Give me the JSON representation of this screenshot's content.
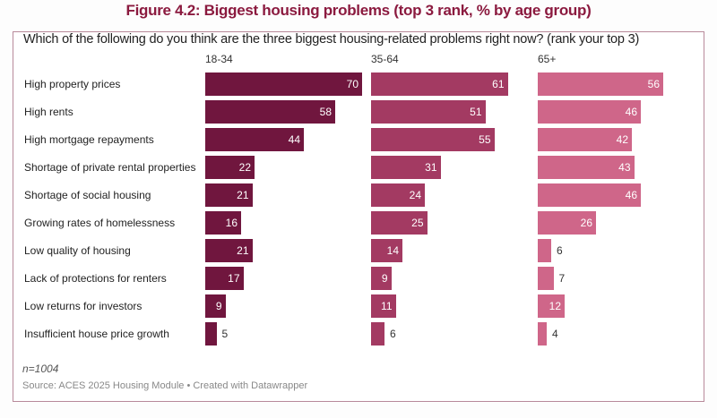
{
  "title": "Figure 4.2: Biggest housing problems (top 3 rank, % by age group)",
  "chart_data": {
    "type": "bar",
    "orientation": "horizontal",
    "question": "Which of the following do you think are the three biggest housing-related problems right now? (rank your top 3)",
    "categories": [
      "High property prices",
      "High rents",
      "High mortgage repayments",
      "Shortage of private rental properties",
      "Shortage of social housing",
      "Growing rates of homelessness",
      "Low quality of housing",
      "Lack of protections for renters",
      "Low returns for investors",
      "Insufficient house price growth"
    ],
    "series": [
      {
        "name": "18-34",
        "color": "#70163e",
        "values": [
          70,
          58,
          44,
          22,
          21,
          16,
          21,
          17,
          9,
          5
        ]
      },
      {
        "name": "35-64",
        "color": "#a33a62",
        "values": [
          61,
          51,
          55,
          31,
          24,
          25,
          14,
          9,
          11,
          6
        ]
      },
      {
        "name": "65+",
        "color": "#cf6689",
        "values": [
          56,
          46,
          42,
          43,
          46,
          26,
          6,
          7,
          12,
          4
        ]
      }
    ],
    "grid": false,
    "legend": "none"
  },
  "note": "n=1004",
  "source": "Source: ACES 2025 Housing Module • Created with Datawrapper"
}
